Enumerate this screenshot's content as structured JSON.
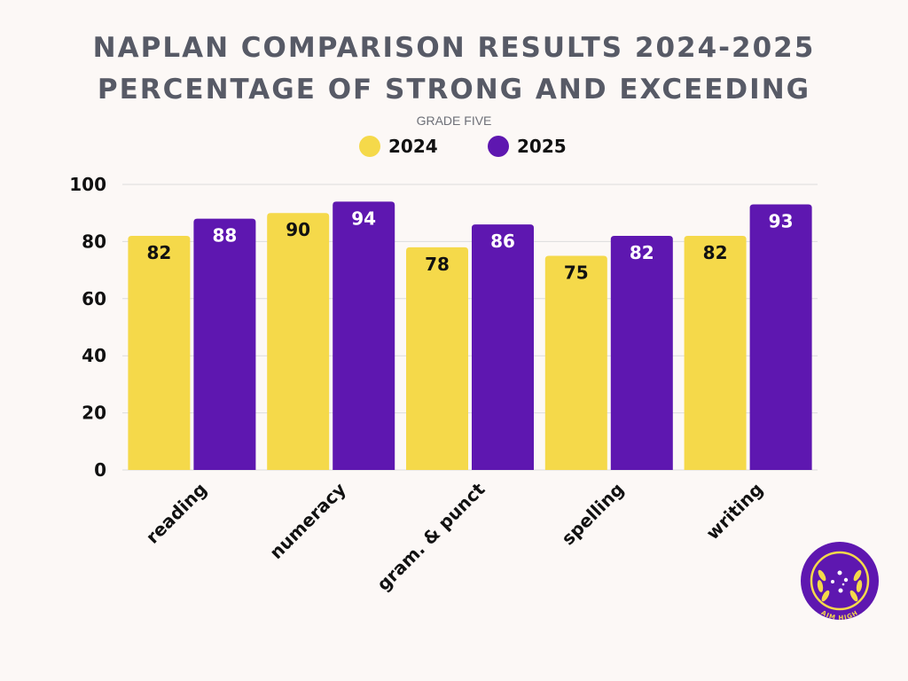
{
  "chart_data": {
    "type": "bar",
    "title_line1": "NAPLAN COMPARISON RESULTS 2024-2025",
    "title_line2": "PERCENTAGE OF STRONG AND EXCEEDING",
    "subtitle": "GRADE FIVE",
    "categories": [
      "reading",
      "numeracy",
      "gram. & punct",
      "spelling",
      "writing"
    ],
    "series": [
      {
        "name": "2024",
        "values": [
          82,
          90,
          78,
          75,
          82
        ],
        "color": "#f5d94a",
        "label_color": "#111111"
      },
      {
        "name": "2025",
        "values": [
          88,
          94,
          86,
          82,
          93
        ],
        "color": "#5e17b0",
        "label_color": "#ffffff"
      }
    ],
    "ylim": [
      0,
      100
    ],
    "yticks": [
      0,
      20,
      40,
      60,
      80,
      100
    ],
    "grid": true,
    "legend": "top-center",
    "xlabel": "",
    "ylabel": ""
  },
  "logo": {
    "text": "AIM HIGH",
    "outer_color": "#5e17b0",
    "inner_color": "#f5d94a"
  }
}
